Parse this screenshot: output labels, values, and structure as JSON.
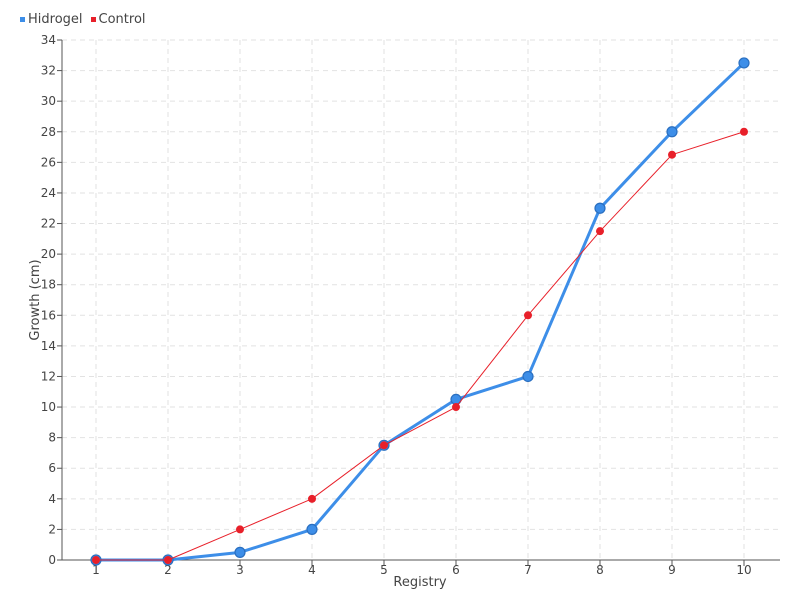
{
  "chart_data": {
    "type": "line",
    "categories": [
      "1",
      "2",
      "3",
      "4",
      "5",
      "6",
      "7",
      "8",
      "9",
      "10"
    ],
    "series": [
      {
        "name": "Hidrogel",
        "color": "#3d8ee8",
        "values": [
          0,
          0,
          0.5,
          2,
          7.5,
          10.5,
          12,
          23,
          28,
          32.5
        ]
      },
      {
        "name": "Control",
        "color": "#e8202a",
        "values": [
          0,
          0,
          2,
          4,
          7.5,
          10,
          16,
          21.5,
          26.5,
          28
        ]
      }
    ],
    "xlabel": "Registry",
    "ylabel": "Growth (cm)",
    "ylim": [
      0,
      34
    ],
    "yticks": [
      0,
      2,
      4,
      6,
      8,
      10,
      12,
      14,
      16,
      18,
      20,
      22,
      24,
      26,
      28,
      30,
      32,
      34
    ],
    "grid": true,
    "legend_position": "top-left"
  }
}
